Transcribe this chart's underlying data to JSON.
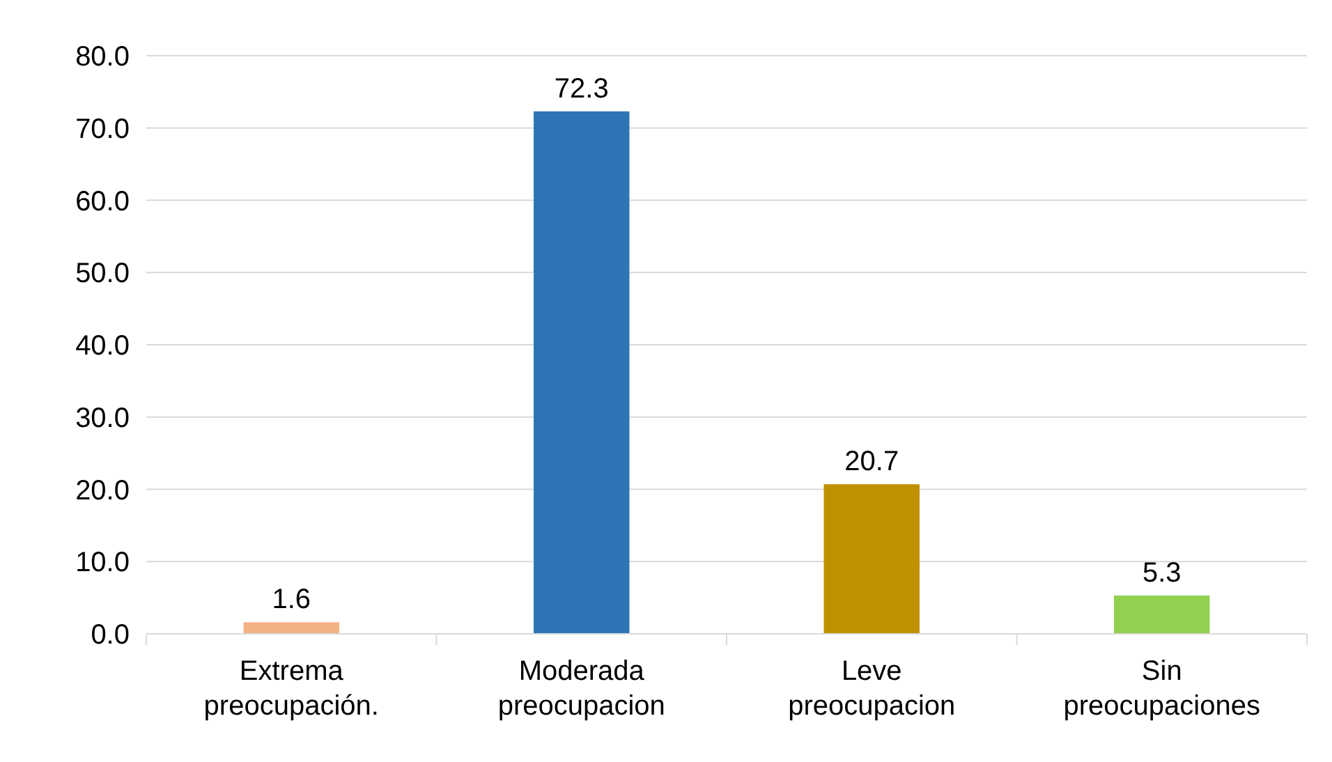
{
  "chart_data": {
    "type": "bar",
    "categories": [
      "Extrema preocupación.",
      "Moderada preocupacion",
      "Leve preocupacion",
      "Sin preocupaciones"
    ],
    "values": [
      1.6,
      72.3,
      20.7,
      5.3
    ],
    "colors": [
      "#f4b183",
      "#2e75b6",
      "#bf9000",
      "#92d050"
    ],
    "ylim": [
      0,
      80
    ],
    "yticks": [
      {
        "value": 0,
        "label": "0.0"
      },
      {
        "value": 10,
        "label": "10.0"
      },
      {
        "value": 20,
        "label": "20.0"
      },
      {
        "value": 30,
        "label": "30.0"
      },
      {
        "value": 40,
        "label": "40.0"
      },
      {
        "value": 50,
        "label": "50.0"
      },
      {
        "value": 60,
        "label": "60.0"
      },
      {
        "value": 70,
        "label": "70.0"
      },
      {
        "value": 80,
        "label": "80.0"
      }
    ],
    "grid": "y",
    "data_labels": true
  }
}
